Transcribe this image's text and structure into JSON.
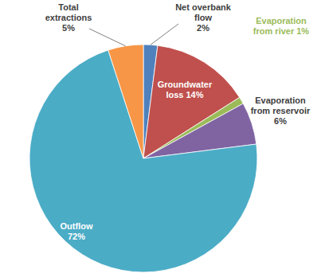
{
  "chart_data": {
    "type": "pie",
    "categories": [
      "Net overbank flow",
      "Groundwater loss",
      "Evaporation from river",
      "Evaporation from reservoir",
      "Outflow",
      "Total extractions"
    ],
    "values": [
      2,
      14,
      1,
      6,
      72,
      5
    ],
    "value_labels": [
      "2%",
      "14%",
      "1%",
      "6%",
      "72%",
      "5%"
    ],
    "colors": [
      "#4f81bd",
      "#c0504d",
      "#9bbb59",
      "#8064a2",
      "#4bacc6",
      "#f79646"
    ],
    "data_labels": true
  }
}
